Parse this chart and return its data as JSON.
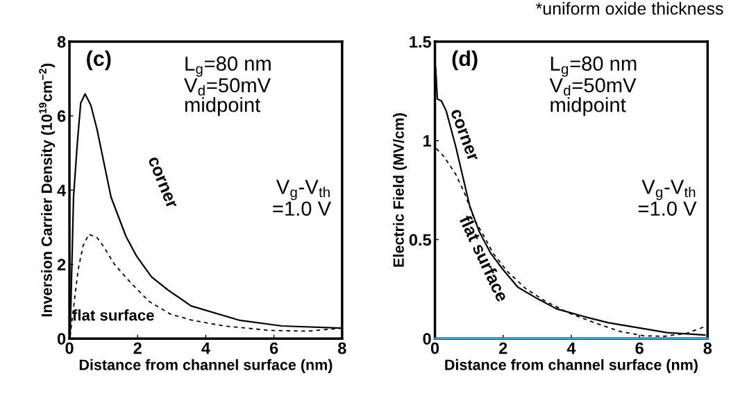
{
  "chart_data": [
    {
      "type": "line",
      "xlabel": "Distance from channel surface (nm)",
      "ylabel": "Inversion Carrier Density (10$^{19}$cm$^{−2}$)",
      "xlim": [
        0,
        8
      ],
      "ylim": [
        0,
        8
      ],
      "xticks": [
        0,
        2,
        4,
        6,
        8
      ],
      "yticks": [
        0,
        2,
        4,
        6,
        8
      ],
      "annotations": [
        "(c)",
        "L$_{g}$=80 nm\nV$_{d}$=50mV\nmidpoint",
        "V$_{g}$-V$_{th}$\n=1.0 V"
      ],
      "series": [
        {
          "name": "corner",
          "color": "#000000",
          "line_style": "solid",
          "x": [
            0.02,
            0.12,
            0.23,
            0.33,
            0.46,
            0.63,
            0.81,
            1.22,
            1.66,
            1.97,
            2.41,
            2.89,
            3.57,
            5.0,
            6.23,
            8.0
          ],
          "values": [
            0.06,
            3.81,
            5.25,
            6.34,
            6.59,
            6.28,
            5.63,
            3.81,
            2.75,
            2.22,
            1.66,
            1.31,
            0.88,
            0.49,
            0.34,
            0.28
          ]
        },
        {
          "name": "flat surface",
          "color": "#000000",
          "line_style": "dashed",
          "x": [
            0.02,
            0.16,
            0.26,
            0.4,
            0.57,
            0.81,
            1.01,
            1.32,
            1.8,
            2.34,
            2.96,
            3.57,
            4.53,
            5.89,
            6.98,
            8.0
          ],
          "values": [
            0.06,
            1.13,
            1.88,
            2.5,
            2.81,
            2.72,
            2.47,
            2.0,
            1.5,
            1.0,
            0.66,
            0.5,
            0.34,
            0.22,
            0.2,
            0.28
          ]
        }
      ]
    },
    {
      "type": "line",
      "xlabel": "Distance from channel surface (nm)",
      "ylabel": "Electric Field (MV/cm)",
      "xlim": [
        0,
        8
      ],
      "ylim": [
        0,
        1.5
      ],
      "xticks": [
        0,
        2,
        4,
        6,
        8
      ],
      "yticks": [
        0,
        0.5,
        1,
        1.5
      ],
      "annotations": [
        "(d)",
        "L$_{g}$=80 nm\nV$_{d}$=50mV\nmidpoint",
        "V$_{g}$-V$_{th}$\n=1.0 V",
        "*uniform oxide thickness"
      ],
      "ref_lines": [
        {
          "axis": "y",
          "value": 0,
          "color": "#2ea8df"
        }
      ],
      "series": [
        {
          "name": "corner",
          "color": "#000000",
          "line_style": "solid",
          "x": [
            0.02,
            0.07,
            0.19,
            0.33,
            0.61,
            1.02,
            1.3,
            1.64,
            1.99,
            2.43,
            3.02,
            3.57,
            4.4,
            5.09,
            6.12,
            6.81,
            7.92
          ],
          "values": [
            1.37,
            1.21,
            1.2,
            1.15,
            0.97,
            0.67,
            0.54,
            0.43,
            0.35,
            0.26,
            0.2,
            0.15,
            0.11,
            0.08,
            0.05,
            0.03,
            0.018
          ]
        },
        {
          "name": "flat surface",
          "color": "#000000",
          "line_style": "dashed",
          "x": [
            0.04,
            0.26,
            0.61,
            0.88,
            1.16,
            1.43,
            1.71,
            2.12,
            2.68,
            3.23,
            3.92,
            4.68,
            5.43,
            6.12,
            6.74,
            7.37,
            7.92
          ],
          "values": [
            0.96,
            0.92,
            0.83,
            0.73,
            0.6,
            0.52,
            0.43,
            0.34,
            0.25,
            0.19,
            0.13,
            0.08,
            0.036,
            0.014,
            0.012,
            0.026,
            0.06
          ]
        }
      ]
    }
  ]
}
